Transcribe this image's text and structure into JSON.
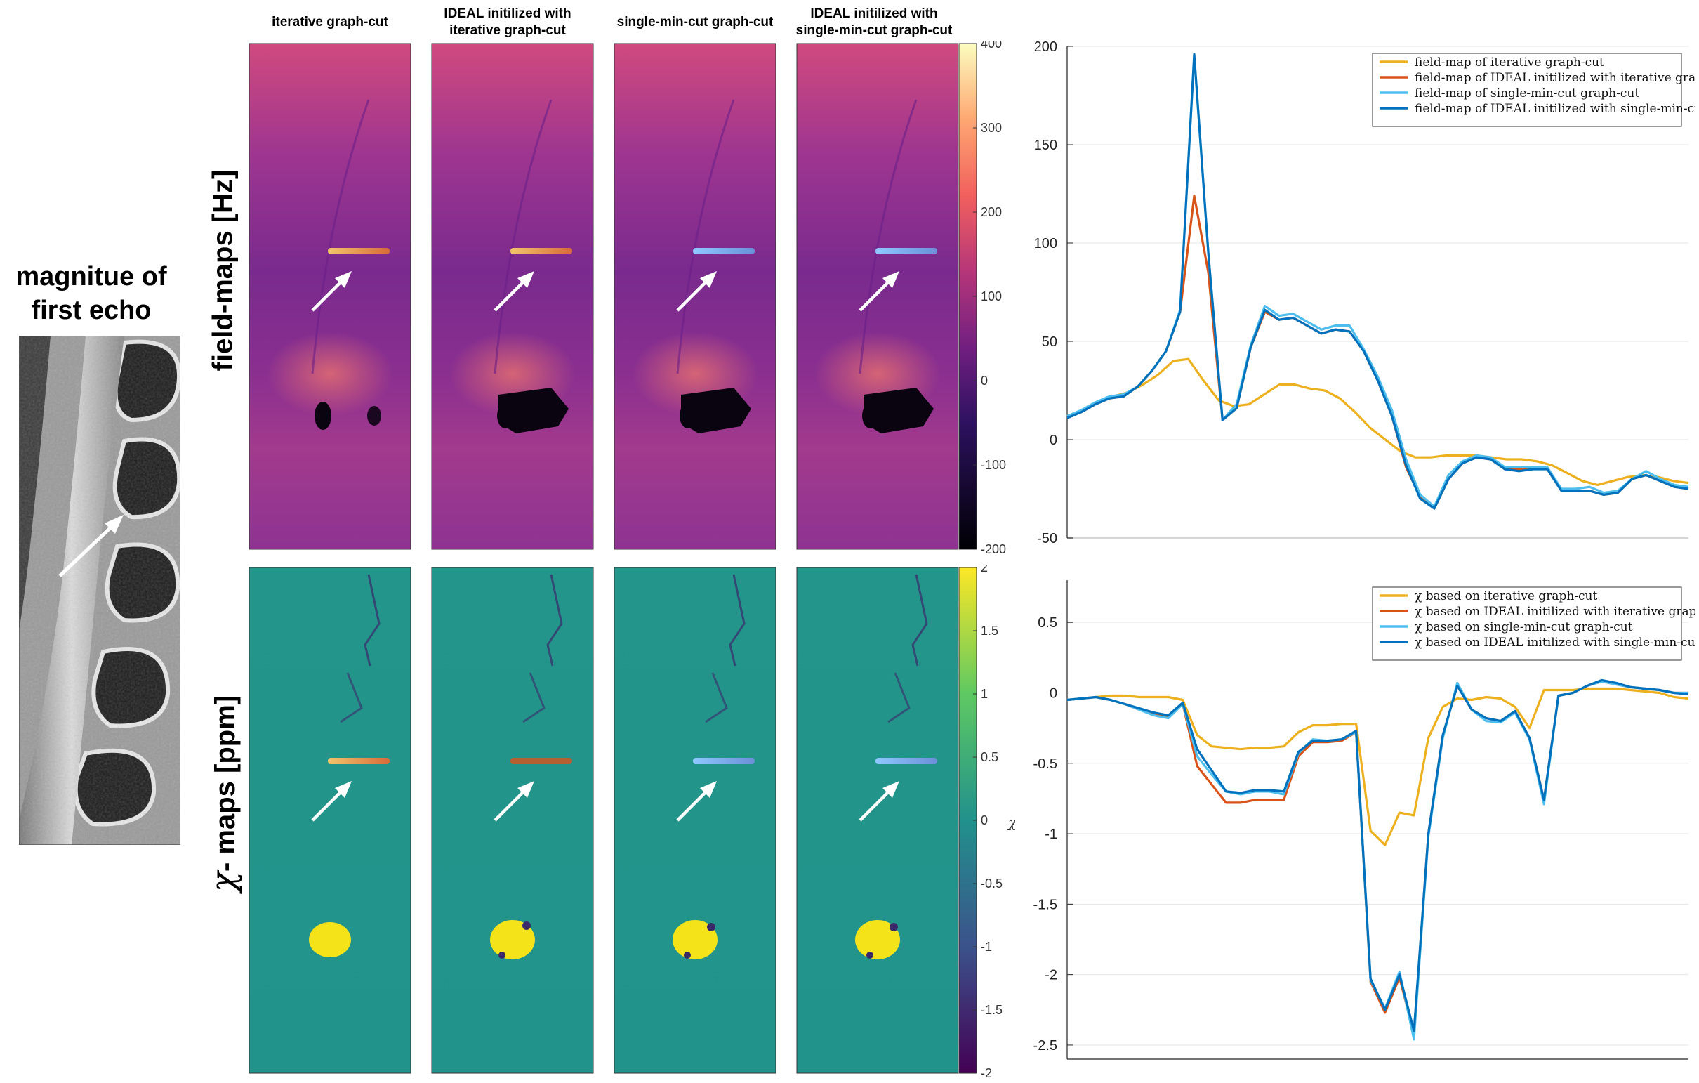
{
  "left_panel": {
    "title_line1": "magnitue of",
    "title_line2": "first echo"
  },
  "row_labels": {
    "field": "field-maps [Hz]",
    "chi_symbol": "χ",
    "chi": "- maps [ppm]"
  },
  "columns": [
    {
      "line1": "iterative graph-cut",
      "line2": ""
    },
    {
      "line1": "IDEAL initilized with",
      "line2": "iterative graph-cut"
    },
    {
      "line1": "single-min-cut graph-cut",
      "line2": ""
    },
    {
      "line1": "IDEAL initilized with",
      "line2": "single-min-cut graph-cut"
    }
  ],
  "colorbars": {
    "field": {
      "ticks": [
        "400",
        "300",
        "200",
        "100",
        "0",
        "-100",
        "-200"
      ]
    },
    "chi": {
      "ticks": [
        "2",
        "1.5",
        "1",
        "0.5",
        "0",
        "-0.5",
        "-1",
        "-1.5",
        "-2"
      ],
      "label": "χ"
    }
  },
  "colors": {
    "iterative": "#EDB120",
    "ideal_iterative": "#D95319",
    "single": "#4DBEEE",
    "ideal_single": "#0072BD"
  },
  "chart_data": [
    {
      "type": "line",
      "title": "",
      "xlabel": "",
      "ylabel": "",
      "ylim": [
        -50,
        200
      ],
      "yticks": [
        "200",
        "150",
        "100",
        "50",
        "0",
        "-50"
      ],
      "legend_position": "top-right",
      "series": [
        {
          "name": "field-map of iterative graph-cut",
          "color": "#EDB120",
          "values": [
            12,
            15,
            19,
            22,
            24,
            28,
            33,
            40,
            41,
            30,
            20,
            17,
            18,
            23,
            28,
            28,
            26,
            25,
            21,
            14,
            6,
            0,
            -6,
            -9,
            -9,
            -8,
            -8,
            -8,
            -9,
            -10,
            -10,
            -11,
            -13,
            -17,
            -21,
            -23,
            -21,
            -19,
            -18,
            -19,
            -21,
            -22
          ]
        },
        {
          "name": "field-map of IDEAL initilized with iterative graph-cut",
          "color": "#D95319",
          "values": [
            11,
            14,
            18,
            21,
            22,
            27,
            35,
            45,
            65,
            124,
            85,
            10,
            16,
            47,
            65,
            61,
            62,
            58,
            54,
            56,
            55,
            45,
            30,
            12,
            -14,
            -29,
            -35,
            -20,
            -12,
            -9,
            -10,
            -15,
            -15,
            -14,
            -14,
            -26,
            -26,
            -26,
            -28,
            -27,
            -20,
            -18,
            -21,
            -24,
            -25
          ]
        },
        {
          "name": "field-map of single-min-cut graph-cut",
          "color": "#4DBEEE",
          "values": [
            12,
            15,
            19,
            22,
            23,
            27,
            35,
            45,
            66,
            195,
            95,
            10,
            18,
            48,
            68,
            63,
            64,
            60,
            56,
            58,
            58,
            46,
            32,
            15,
            -10,
            -28,
            -34,
            -18,
            -11,
            -8,
            -9,
            -14,
            -14,
            -14,
            -14,
            -25,
            -25,
            -24,
            -27,
            -26,
            -20,
            -16,
            -20,
            -23,
            -24
          ]
        },
        {
          "name": "field-map of IDEAL initilized with single-min-cut graphcut",
          "color": "#0072BD",
          "values": [
            11,
            14,
            18,
            21,
            22,
            27,
            35,
            45,
            65,
            196,
            95,
            10,
            16,
            47,
            66,
            61,
            62,
            58,
            54,
            56,
            55,
            45,
            30,
            12,
            -13,
            -30,
            -35,
            -20,
            -12,
            -9,
            -10,
            -15,
            -16,
            -15,
            -15,
            -26,
            -26,
            -26,
            -28,
            -27,
            -20,
            -18,
            -21,
            -24,
            -25
          ]
        }
      ]
    },
    {
      "type": "line",
      "title": "",
      "xlabel": "",
      "ylabel": "",
      "ylim": [
        -2.6,
        0.8
      ],
      "yticks": [
        "0.5",
        "0",
        "-0.5",
        "-1",
        "-1.5",
        "-2",
        "-2.5"
      ],
      "legend_position": "top-right",
      "series": [
        {
          "name": "χ based on iterative graph-cut",
          "color": "#EDB120",
          "values": [
            -0.05,
            -0.04,
            -0.03,
            -0.02,
            -0.02,
            -0.03,
            -0.03,
            -0.03,
            -0.05,
            -0.3,
            -0.38,
            -0.39,
            -0.4,
            -0.39,
            -0.39,
            -0.38,
            -0.28,
            -0.23,
            -0.23,
            -0.22,
            -0.22,
            -0.98,
            -1.08,
            -0.85,
            -0.87,
            -0.32,
            -0.1,
            -0.04,
            -0.05,
            -0.03,
            -0.04,
            -0.1,
            -0.25,
            0.02,
            0.02,
            0.02,
            0.03,
            0.03,
            0.03,
            0.02,
            0.01,
            0.0,
            -0.03,
            -0.04
          ]
        },
        {
          "name": "χ based on IDEAL initilized with iterative graph-cut",
          "color": "#D95319",
          "values": [
            -0.05,
            -0.04,
            -0.03,
            -0.05,
            -0.08,
            -0.12,
            -0.15,
            -0.17,
            -0.08,
            -0.52,
            -0.65,
            -0.78,
            -0.78,
            -0.76,
            -0.76,
            -0.76,
            -0.45,
            -0.35,
            -0.35,
            -0.34,
            -0.28,
            -2.05,
            -2.27,
            -2.02,
            -2.42,
            -1.0,
            -0.3,
            0.05,
            -0.12,
            -0.18,
            -0.2,
            -0.13,
            -0.32,
            -0.76,
            -0.02,
            0.0,
            0.05,
            0.08,
            0.06,
            0.04,
            0.03,
            0.02,
            0.0,
            0.0
          ]
        },
        {
          "name": "χ based on single-min-cut graph-cut",
          "color": "#4DBEEE",
          "values": [
            -0.05,
            -0.04,
            -0.03,
            -0.05,
            -0.08,
            -0.12,
            -0.16,
            -0.18,
            -0.08,
            -0.45,
            -0.58,
            -0.7,
            -0.72,
            -0.7,
            -0.7,
            -0.72,
            -0.43,
            -0.33,
            -0.34,
            -0.33,
            -0.28,
            -2.04,
            -2.24,
            -1.98,
            -2.46,
            -1.02,
            -0.32,
            0.07,
            -0.12,
            -0.2,
            -0.21,
            -0.14,
            -0.33,
            -0.79,
            -0.02,
            0.0,
            0.05,
            0.08,
            0.06,
            0.04,
            0.03,
            0.02,
            0.0,
            0.0
          ]
        },
        {
          "name": "χ based on IDEAL initilized with single-min-cut graphcut",
          "color": "#0072BD",
          "values": [
            -0.05,
            -0.04,
            -0.03,
            -0.05,
            -0.08,
            -0.11,
            -0.14,
            -0.16,
            -0.07,
            -0.4,
            -0.55,
            -0.7,
            -0.71,
            -0.69,
            -0.69,
            -0.7,
            -0.42,
            -0.34,
            -0.34,
            -0.33,
            -0.27,
            -2.03,
            -2.25,
            -2.0,
            -2.4,
            -1.0,
            -0.3,
            0.05,
            -0.12,
            -0.18,
            -0.2,
            -0.13,
            -0.32,
            -0.76,
            -0.02,
            0.0,
            0.05,
            0.09,
            0.07,
            0.04,
            0.03,
            0.02,
            0.0,
            -0.01
          ]
        }
      ]
    }
  ]
}
